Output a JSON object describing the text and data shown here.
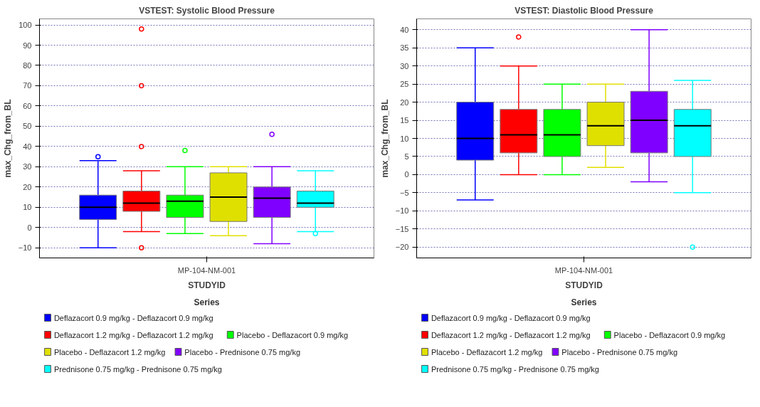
{
  "chart_data": [
    {
      "type": "box",
      "title": "VSTEST: Systolic Blood Pressure",
      "xlabel": "STUDYID",
      "ylabel": "max_Chg_from_BL",
      "categories": [
        "MP-104-NM-001"
      ],
      "ylim": [
        -15,
        103
      ],
      "yticks": [
        -10,
        0,
        10,
        20,
        30,
        40,
        50,
        60,
        70,
        80,
        90,
        100
      ],
      "grid": "y",
      "legend": "bottom",
      "legend_title": "Series",
      "series": [
        {
          "name": "Deflazacort 0.9 mg/kg - Deflazacort 0.9 mg/kg",
          "color": "#0000ff",
          "boxes": [
            {
              "low": -10,
              "q1": 4,
              "median": 10,
              "q3": 16,
              "high": 33,
              "outliers": [
                35
              ]
            }
          ]
        },
        {
          "name": "Deflazacort 1.2 mg/kg - Deflazacort 1.2 mg/kg",
          "color": "#ff0000",
          "boxes": [
            {
              "low": -2,
              "q1": 8,
              "median": 12,
              "q3": 18,
              "high": 28,
              "outliers": [
                40,
                70,
                98,
                -10
              ]
            }
          ]
        },
        {
          "name": "Placebo - Deflazacort 0.9 mg/kg",
          "color": "#00ff00",
          "boxes": [
            {
              "low": -3,
              "q1": 5,
              "median": 13,
              "q3": 16,
              "high": 30,
              "outliers": [
                38
              ]
            }
          ]
        },
        {
          "name": "Placebo - Deflazacort 1.2 mg/kg",
          "color": "#e0e000",
          "boxes": [
            {
              "low": -4,
              "q1": 3,
              "median": 15,
              "q3": 27,
              "high": 30
            }
          ]
        },
        {
          "name": "Placebo - Prednisone 0.75 mg/kg",
          "color": "#8000ff",
          "boxes": [
            {
              "low": -8,
              "q1": 5,
              "median": 14.5,
              "q3": 20,
              "high": 30,
              "outliers": [
                46
              ]
            }
          ]
        },
        {
          "name": "Prednisone 0.75 mg/kg - Prednisone 0.75 mg/kg",
          "color": "#00ffff",
          "boxes": [
            {
              "low": -2,
              "q1": 10,
              "median": 12,
              "q3": 18,
              "high": 28,
              "outliers": [
                -3
              ]
            }
          ]
        }
      ]
    },
    {
      "type": "box",
      "title": "VSTEST: Diastolic Blood Pressure",
      "xlabel": "STUDYID",
      "ylabel": "max_Chg_from_BL",
      "categories": [
        "MP-104-NM-001"
      ],
      "ylim": [
        -23,
        43
      ],
      "yticks": [
        -20,
        -15,
        -10,
        -5,
        0,
        5,
        10,
        15,
        20,
        25,
        30,
        35,
        40
      ],
      "grid": "y",
      "legend": "bottom",
      "legend_title": "Series",
      "series": [
        {
          "name": "Deflazacort 0.9 mg/kg - Deflazacort 0.9 mg/kg",
          "color": "#0000ff",
          "boxes": [
            {
              "low": -7,
              "q1": 4,
              "median": 10,
              "q3": 20,
              "high": 35
            }
          ]
        },
        {
          "name": "Deflazacort 1.2 mg/kg - Deflazacort 1.2 mg/kg",
          "color": "#ff0000",
          "boxes": [
            {
              "low": 0,
              "q1": 6,
              "median": 11,
              "q3": 18,
              "high": 30,
              "outliers": [
                38
              ]
            }
          ]
        },
        {
          "name": "Placebo - Deflazacort 0.9 mg/kg",
          "color": "#00ff00",
          "boxes": [
            {
              "low": 0,
              "q1": 5,
              "median": 11,
              "q3": 18,
              "high": 25
            }
          ]
        },
        {
          "name": "Placebo - Deflazacort 1.2 mg/kg",
          "color": "#e0e000",
          "boxes": [
            {
              "low": 2,
              "q1": 8,
              "median": 13.5,
              "q3": 20,
              "high": 25
            }
          ]
        },
        {
          "name": "Placebo - Prednisone 0.75 mg/kg",
          "color": "#8000ff",
          "boxes": [
            {
              "low": -2,
              "q1": 6,
              "median": 15,
              "q3": 23,
              "high": 40
            }
          ]
        },
        {
          "name": "Prednisone 0.75 mg/kg - Prednisone 0.75 mg/kg",
          "color": "#00ffff",
          "boxes": [
            {
              "low": -5,
              "q1": 5,
              "median": 13.5,
              "q3": 18,
              "high": 26,
              "outliers": [
                -20
              ]
            }
          ]
        }
      ]
    }
  ]
}
